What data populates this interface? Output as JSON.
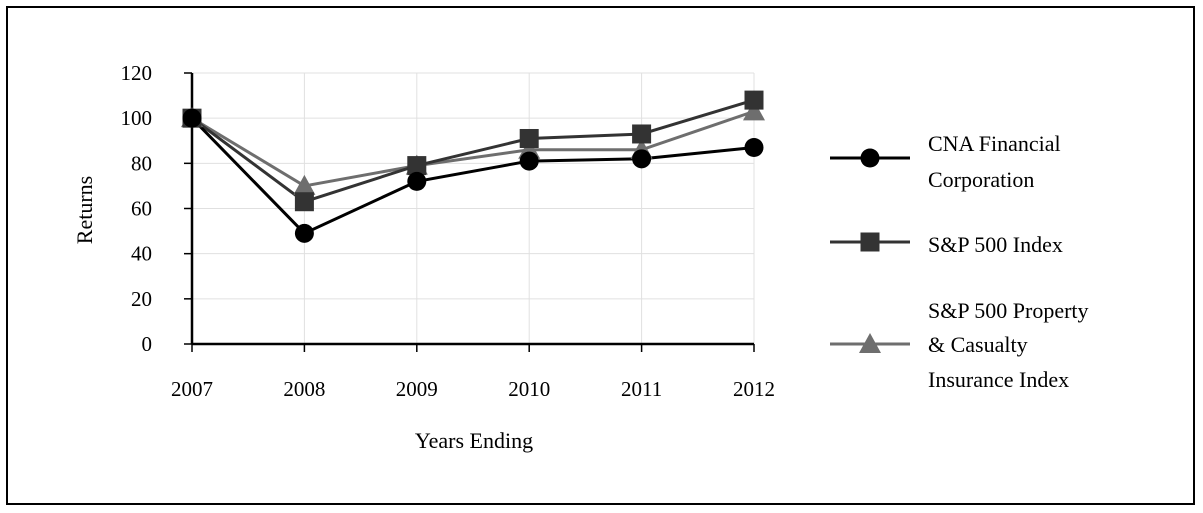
{
  "chart_data": {
    "type": "line",
    "title": "",
    "xlabel": "Years Ending",
    "ylabel": "Returns",
    "categories": [
      "2007",
      "2008",
      "2009",
      "2010",
      "2011",
      "2012"
    ],
    "ylim": [
      0,
      120
    ],
    "yticks": [
      0,
      20,
      40,
      60,
      80,
      100,
      120
    ],
    "grid": true,
    "legend_position": "right",
    "series": [
      {
        "name": "CNA Financial Corporation",
        "legend_lines": [
          "CNA Financial",
          "Corporation"
        ],
        "values": [
          100,
          49,
          72,
          81,
          82,
          87
        ],
        "marker": "circle",
        "color": "#000000"
      },
      {
        "name": "S&P 500 Index",
        "legend_lines": [
          "S&P 500 Index"
        ],
        "values": [
          100,
          63,
          79,
          91,
          93,
          108
        ],
        "marker": "square",
        "color": "#333333"
      },
      {
        "name": "S&P 500 Property & Casualty Insurance Index",
        "legend_lines": [
          "S&P 500 Property",
          "& Casualty",
          "Insurance Index"
        ],
        "values": [
          100,
          70,
          79,
          86,
          86,
          103
        ],
        "marker": "triangle",
        "color": "#6e6e6e"
      }
    ]
  }
}
